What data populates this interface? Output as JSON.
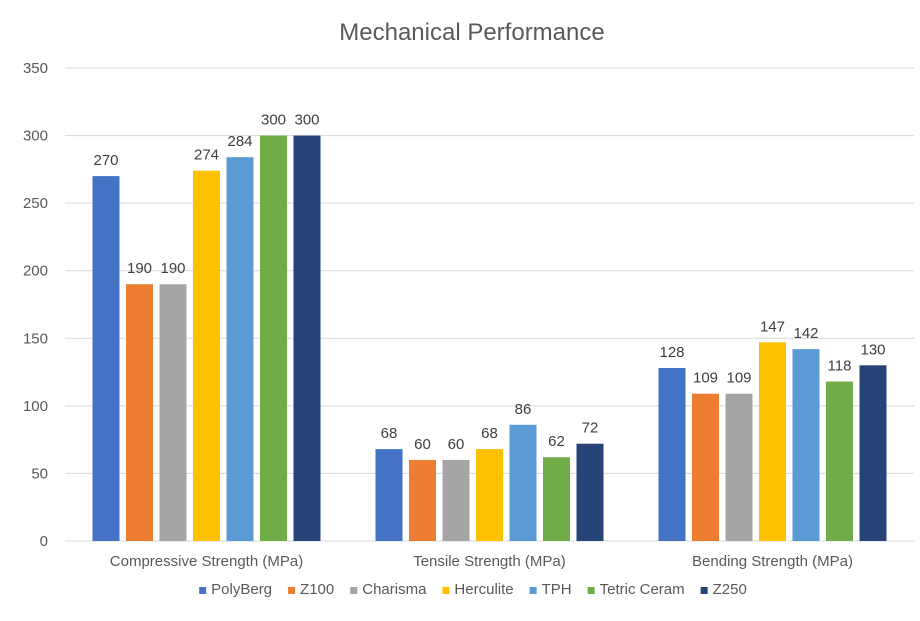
{
  "chart_data": {
    "type": "bar",
    "title": "Mechanical Performance",
    "xlabel": "",
    "ylabel": "",
    "ylim": [
      0,
      350
    ],
    "yticks": [
      0,
      50,
      100,
      150,
      200,
      250,
      300,
      350
    ],
    "grid": true,
    "legend_position": "bottom",
    "categories": [
      "Compressive Strength (MPa)",
      "Tensile Strength (MPa)",
      "Bending Strength (MPa)"
    ],
    "series": [
      {
        "name": "PolyBerg",
        "color": "#4472c4",
        "values": [
          270,
          68,
          128
        ]
      },
      {
        "name": "Z100",
        "color": "#ed7d31",
        "values": [
          190,
          60,
          109
        ]
      },
      {
        "name": "Charisma",
        "color": "#a5a5a5",
        "values": [
          190,
          60,
          109
        ]
      },
      {
        "name": "Herculite",
        "color": "#ffc000",
        "values": [
          274,
          68,
          147
        ]
      },
      {
        "name": "TPH",
        "color": "#5b9bd5",
        "values": [
          284,
          86,
          142
        ]
      },
      {
        "name": "Tetric Ceram",
        "color": "#70ad47",
        "values": [
          300,
          62,
          118
        ]
      },
      {
        "name": "Z250",
        "color": "#264478",
        "values": [
          300,
          72,
          130
        ]
      }
    ]
  }
}
